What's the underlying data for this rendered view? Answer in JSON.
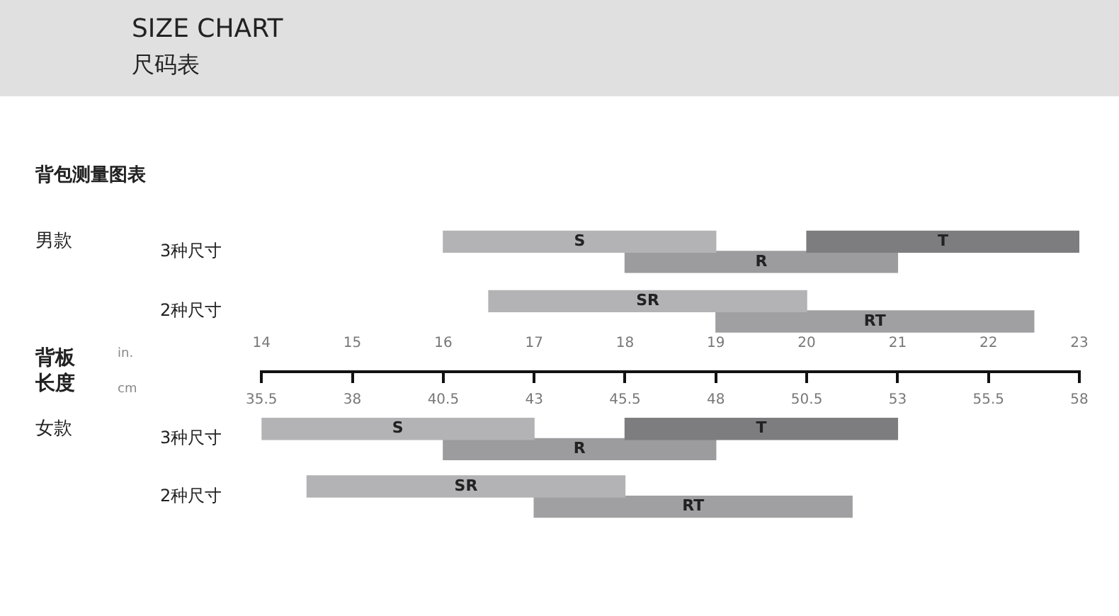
{
  "chart_data": {
    "type": "bar",
    "orientation": "horizontal",
    "title": "SIZE CHART",
    "subtitle": "尺码表",
    "xlabel": "in.",
    "x2label": "cm",
    "categories": [
      "3种尺寸",
      "2种尺寸",
      "3种尺寸",
      "2种尺寸"
    ],
    "series": [
      {
        "name": "S",
        "color": "#b3b3b5",
        "base": [
          16,
          null,
          14,
          null
        ],
        "values": [
          3,
          null,
          3,
          null
        ]
      },
      {
        "name": "T",
        "color": "#7d7d80",
        "base": [
          20,
          null,
          18,
          null
        ],
        "values": [
          3,
          null,
          3,
          null
        ]
      },
      {
        "name": "R",
        "color": "#9c9c9e",
        "base": [
          18,
          null,
          16,
          null
        ],
        "values": [
          3,
          null,
          3,
          null
        ]
      },
      {
        "name": "SR",
        "color": "#b3b3b5",
        "base": [
          null,
          16.5,
          null,
          14.5
        ],
        "values": [
          null,
          3.5,
          null,
          3.5
        ]
      },
      {
        "name": "RT",
        "color": "#a0a0a2",
        "base": [
          null,
          19,
          null,
          17
        ],
        "values": [
          null,
          3.5,
          null,
          3.5
        ]
      }
    ],
    "xlim": [
      14,
      23
    ],
    "xticks": [
      14,
      15,
      16,
      17,
      18,
      19,
      20,
      21,
      22,
      23
    ],
    "x2lim": [
      35.5,
      58
    ],
    "x2ticks": [
      35.5,
      38,
      40.5,
      43,
      45.5,
      48,
      50.5,
      53,
      55.5,
      58
    ],
    "annotations": [
      "背包测量图表",
      "男款",
      "女款",
      "背板长度"
    ],
    "grid": false,
    "legend": false
  }
}
